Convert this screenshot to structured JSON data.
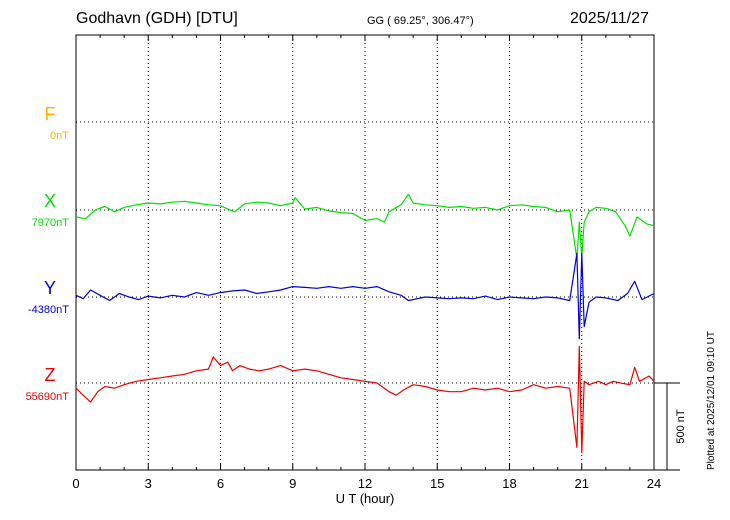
{
  "header": {
    "station": "Godhavn (GDH)  [DTU]",
    "coords": "GG ( 69.25°, 306.47°)",
    "date": "2025/11/27"
  },
  "footer": {
    "plotted": "Plotted at 2025/12/01 09:10 UT"
  },
  "colors": {
    "F": "#ffb000",
    "X": "#00e000",
    "Y": "#0000dd",
    "Z": "#ee0000"
  },
  "chart_data": {
    "type": "line",
    "title": "Godhavn (GDH)  [DTU]",
    "xlabel": "U T (hour)",
    "xlim": [
      0,
      24
    ],
    "xticks": [
      "0",
      "3",
      "6",
      "9",
      "12",
      "15",
      "18",
      "21",
      "24"
    ],
    "grid": true,
    "scale_bar": "500 nT",
    "units": "nT",
    "series": [
      {
        "name": "F",
        "baseline_label": "0nT",
        "baseline_nT": 0,
        "color": "#ffb000",
        "x": [],
        "values": []
      },
      {
        "name": "X",
        "baseline_label": "7970nT",
        "baseline_nT": 7970,
        "color": "#00e000",
        "x": [
          0,
          0.4,
          0.8,
          1.2,
          1.6,
          2.0,
          2.5,
          3.0,
          3.5,
          4.0,
          4.5,
          5.0,
          5.5,
          6.0,
          6.4,
          6.6,
          7.0,
          7.5,
          8.0,
          8.5,
          9.0,
          9.1,
          9.5,
          10.0,
          10.5,
          11.0,
          11.5,
          12.0,
          12.5,
          12.8,
          13.0,
          13.5,
          13.8,
          14.0,
          14.5,
          15.0,
          15.5,
          16.0,
          16.5,
          17.0,
          17.5,
          18.0,
          18.5,
          19.0,
          19.5,
          20.0,
          20.5,
          20.8,
          20.9,
          21.0,
          21.1,
          21.3,
          21.6,
          22.0,
          22.4,
          22.8,
          23.0,
          23.3,
          23.7,
          24.0
        ],
        "values": [
          7930,
          7920,
          7970,
          7990,
          7960,
          7985,
          8000,
          8010,
          8005,
          8015,
          8020,
          8010,
          8000,
          7995,
          7970,
          7960,
          8005,
          8015,
          8010,
          7995,
          8010,
          8040,
          7975,
          7985,
          7965,
          7955,
          7950,
          7910,
          7920,
          7900,
          7960,
          8000,
          8060,
          8010,
          8000,
          7995,
          7985,
          7990,
          7980,
          7985,
          7970,
          7995,
          8000,
          7990,
          7985,
          7960,
          7970,
          7690,
          7900,
          7700,
          7900,
          7960,
          7985,
          7980,
          7960,
          7880,
          7820,
          7930,
          7890,
          7880
        ]
      },
      {
        "name": "Y",
        "baseline_label": "-4380nT",
        "baseline_nT": -4380,
        "color": "#0000dd",
        "x": [
          0,
          0.3,
          0.6,
          1.0,
          1.4,
          1.8,
          2.2,
          2.6,
          3.0,
          3.5,
          4.0,
          4.5,
          5.0,
          5.5,
          6.0,
          6.5,
          7.0,
          7.5,
          8.0,
          8.5,
          9.0,
          9.5,
          10.0,
          10.5,
          11.0,
          11.5,
          12.0,
          12.5,
          13.0,
          13.5,
          13.8,
          14.0,
          14.5,
          15.0,
          15.5,
          16.0,
          16.5,
          17.0,
          17.5,
          18.0,
          18.5,
          19.0,
          19.5,
          20.0,
          20.5,
          20.8,
          20.9,
          21.0,
          21.1,
          21.3,
          21.6,
          22.0,
          22.5,
          22.9,
          23.2,
          23.5,
          24.0
        ],
        "values": [
          -4370,
          -4390,
          -4340,
          -4370,
          -4400,
          -4360,
          -4380,
          -4395,
          -4375,
          -4385,
          -4370,
          -4380,
          -4355,
          -4370,
          -4355,
          -4345,
          -4340,
          -4360,
          -4350,
          -4340,
          -4320,
          -4325,
          -4330,
          -4320,
          -4330,
          -4320,
          -4330,
          -4320,
          -4350,
          -4370,
          -4400,
          -4395,
          -4380,
          -4385,
          -4390,
          -4385,
          -4390,
          -4375,
          -4395,
          -4380,
          -4385,
          -4390,
          -4380,
          -4385,
          -4400,
          -4130,
          -4620,
          -4130,
          -4550,
          -4410,
          -4380,
          -4385,
          -4400,
          -4360,
          -4290,
          -4395,
          -4360
        ]
      },
      {
        "name": "Z",
        "baseline_label": "55690nT",
        "baseline_nT": 55690,
        "color": "#ee0000",
        "x": [
          0,
          0.3,
          0.6,
          0.9,
          1.2,
          1.6,
          2.0,
          2.5,
          3.0,
          3.5,
          4.0,
          4.5,
          5.0,
          5.5,
          5.7,
          6.0,
          6.3,
          6.5,
          6.8,
          7.2,
          7.6,
          8.0,
          8.5,
          9.0,
          9.5,
          10.0,
          10.5,
          11.0,
          11.5,
          12.0,
          12.5,
          13.0,
          13.3,
          13.6,
          14.0,
          14.5,
          15.0,
          15.5,
          16.0,
          16.5,
          17.0,
          17.5,
          18.0,
          18.5,
          19.0,
          19.5,
          20.0,
          20.5,
          20.8,
          20.9,
          21.0,
          21.1,
          21.3,
          21.7,
          22.0,
          22.3,
          22.6,
          23.0,
          23.2,
          23.4,
          23.8,
          24.0
        ],
        "values": [
          55660,
          55620,
          55580,
          55640,
          55670,
          55660,
          55680,
          55700,
          55710,
          55720,
          55730,
          55740,
          55760,
          55770,
          55840,
          55790,
          55810,
          55760,
          55790,
          55770,
          55760,
          55770,
          55790,
          55760,
          55770,
          55760,
          55740,
          55720,
          55710,
          55700,
          55690,
          55640,
          55620,
          55650,
          55680,
          55670,
          55650,
          55640,
          55640,
          55660,
          55650,
          55660,
          55640,
          55650,
          55680,
          55660,
          55670,
          55660,
          55320,
          55900,
          55290,
          55700,
          55680,
          55700,
          55680,
          55700,
          55690,
          55680,
          55780,
          55700,
          55730,
          55700
        ]
      }
    ]
  }
}
